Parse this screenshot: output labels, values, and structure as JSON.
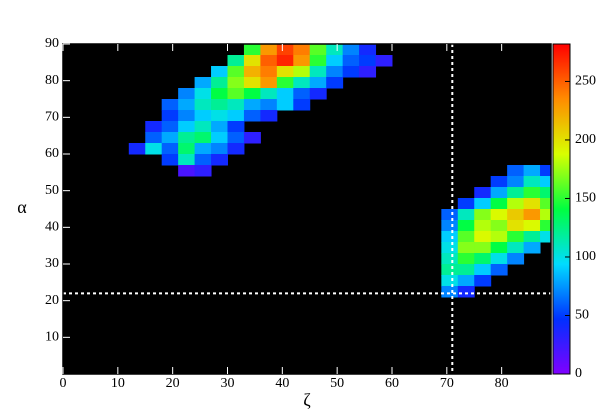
{
  "chart_data": {
    "type": "heatmap",
    "xlabel": "ζ",
    "ylabel": "α",
    "xlim": [
      0,
      89
    ],
    "ylim": [
      0,
      90
    ],
    "xticks": [
      0,
      10,
      20,
      30,
      40,
      50,
      60,
      70,
      80
    ],
    "yticks": [
      10,
      20,
      30,
      40,
      50,
      60,
      70,
      80,
      90
    ],
    "zlim": [
      0,
      282
    ],
    "zticks": [
      0,
      50,
      100,
      150,
      200,
      250
    ],
    "colormap": [
      "#8000ff",
      "#0030ff",
      "#00dcff",
      "#00ff40",
      "#d8ff00",
      "#ff8c00",
      "#ff0000"
    ],
    "background": "#000000",
    "reference_lines": {
      "x": 71,
      "y": 22,
      "color": "#ffffff"
    },
    "x": [
      34.5,
      37.5,
      40.5,
      43.5,
      46.5,
      49.5,
      52.5,
      55.5,
      31.5,
      34.5,
      37.5,
      40.5,
      43.5,
      46.5,
      49.5,
      52.5,
      55.5,
      58.5,
      28.5,
      31.5,
      34.5,
      37.5,
      40.5,
      43.5,
      46.5,
      49.5,
      52.5,
      55.5,
      25.5,
      28.5,
      31.5,
      34.5,
      37.5,
      40.5,
      43.5,
      46.5,
      49.5,
      22.5,
      25.5,
      28.5,
      31.5,
      34.5,
      37.5,
      40.5,
      43.5,
      46.5,
      19.5,
      22.5,
      25.5,
      28.5,
      31.5,
      34.5,
      37.5,
      40.5,
      43.5,
      19.5,
      22.5,
      25.5,
      28.5,
      31.5,
      34.5,
      37.5,
      16.5,
      19.5,
      22.5,
      25.5,
      28.5,
      31.5,
      16.5,
      19.5,
      22.5,
      25.5,
      28.5,
      31.5,
      34.5,
      13.5,
      16.5,
      19.5,
      22.5,
      25.5,
      28.5,
      31.5,
      19.5,
      22.5,
      25.5,
      28.5,
      22.5,
      25.5,
      82.5,
      85.5,
      88.5,
      79.5,
      82.5,
      85.5,
      88.5,
      76.5,
      79.5,
      82.5,
      85.5,
      88.5,
      73.5,
      76.5,
      79.5,
      82.5,
      85.5,
      88.5,
      70.5,
      73.5,
      76.5,
      79.5,
      82.5,
      85.5,
      88.5,
      70.5,
      73.5,
      76.5,
      79.5,
      82.5,
      85.5,
      88.5,
      70.5,
      73.5,
      76.5,
      79.5,
      82.5,
      85.5,
      88.5,
      70.5,
      73.5,
      76.5,
      79.5,
      82.5,
      85.5,
      70.5,
      73.5,
      76.5,
      79.5,
      82.5,
      70.5,
      73.5,
      76.5,
      79.5,
      70.5,
      73.5,
      76.5,
      70.5,
      73.5
    ],
    "y": [
      88.5,
      88.5,
      88.5,
      88.5,
      88.5,
      88.5,
      88.5,
      88.5,
      85.5,
      85.5,
      85.5,
      85.5,
      85.5,
      85.5,
      85.5,
      85.5,
      85.5,
      85.5,
      82.5,
      82.5,
      82.5,
      82.5,
      82.5,
      82.5,
      82.5,
      82.5,
      82.5,
      82.5,
      79.5,
      79.5,
      79.5,
      79.5,
      79.5,
      79.5,
      79.5,
      79.5,
      79.5,
      76.5,
      76.5,
      76.5,
      76.5,
      76.5,
      76.5,
      76.5,
      76.5,
      76.5,
      73.5,
      73.5,
      73.5,
      73.5,
      73.5,
      73.5,
      73.5,
      73.5,
      73.5,
      70.5,
      70.5,
      70.5,
      70.5,
      70.5,
      70.5,
      70.5,
      67.5,
      67.5,
      67.5,
      67.5,
      67.5,
      67.5,
      64.5,
      64.5,
      64.5,
      64.5,
      64.5,
      64.5,
      64.5,
      61.5,
      61.5,
      61.5,
      61.5,
      61.5,
      61.5,
      61.5,
      58.5,
      58.5,
      58.5,
      58.5,
      55.5,
      55.5,
      55.5,
      55.5,
      55.5,
      52.5,
      52.5,
      52.5,
      52.5,
      49.5,
      49.5,
      49.5,
      49.5,
      49.5,
      46.5,
      46.5,
      46.5,
      46.5,
      46.5,
      46.5,
      43.5,
      43.5,
      43.5,
      43.5,
      43.5,
      43.5,
      43.5,
      40.5,
      40.5,
      40.5,
      40.5,
      40.5,
      40.5,
      40.5,
      37.5,
      37.5,
      37.5,
      37.5,
      37.5,
      37.5,
      37.5,
      34.5,
      34.5,
      34.5,
      34.5,
      34.5,
      34.5,
      31.5,
      31.5,
      31.5,
      31.5,
      31.5,
      28.5,
      28.5,
      28.5,
      28.5,
      25.5,
      25.5,
      25.5,
      22.5,
      22.5
    ],
    "values": [
      150,
      230,
      260,
      240,
      160,
      110,
      70,
      40,
      120,
      200,
      250,
      270,
      230,
      150,
      90,
      60,
      50,
      30,
      90,
      160,
      220,
      240,
      200,
      180,
      110,
      70,
      50,
      30,
      80,
      120,
      170,
      200,
      230,
      150,
      110,
      80,
      50,
      70,
      100,
      140,
      160,
      140,
      110,
      90,
      60,
      40,
      60,
      80,
      110,
      120,
      110,
      80,
      70,
      90,
      50,
      50,
      70,
      90,
      100,
      90,
      60,
      40,
      40,
      60,
      90,
      110,
      80,
      50,
      60,
      80,
      120,
      130,
      90,
      60,
      30,
      40,
      100,
      60,
      130,
      80,
      70,
      40,
      50,
      110,
      60,
      40,
      20,
      30,
      60,
      80,
      50,
      50,
      70,
      110,
      90,
      40,
      80,
      120,
      150,
      130,
      50,
      90,
      140,
      180,
      200,
      160,
      60,
      110,
      170,
      190,
      210,
      230,
      180,
      70,
      140,
      180,
      170,
      200,
      190,
      150,
      90,
      160,
      190,
      180,
      150,
      120,
      100,
      100,
      170,
      170,
      140,
      110,
      80,
      110,
      150,
      130,
      100,
      70,
      120,
      120,
      90,
      60,
      100,
      80,
      50,
      70,
      40
    ]
  }
}
